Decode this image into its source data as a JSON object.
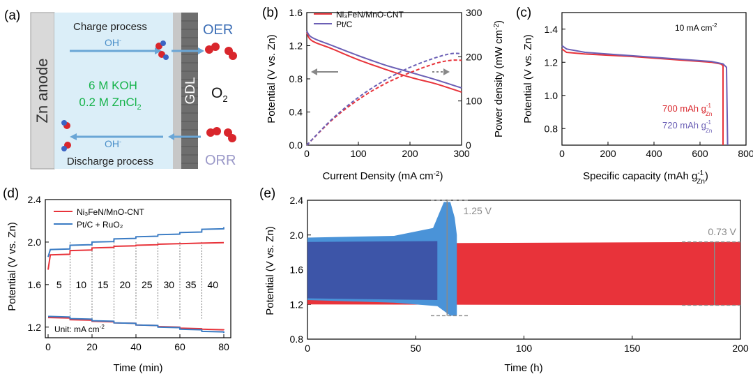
{
  "colors": {
    "red": "#e8333a",
    "purple": "#6b5fb5",
    "blue": "#3b7cc4",
    "darkblue": "#3d55a8",
    "green": "#16b34a",
    "oer_blue": "#3d6fb6",
    "orr_gray": "#9a98c8",
    "gray": "#8a8a8a"
  },
  "panel_a": {
    "label": "(a)",
    "zn_anode": "Zn anode",
    "charge": "Charge process",
    "discharge": "Discharge process",
    "oh_top": "OH",
    "oh_bottom": "OH",
    "oh_sup": "-",
    "koh": "6 M KOH",
    "zncl_main": "0.2 M ZnCl",
    "zncl_sub": "2",
    "gdl": "GDL",
    "oer": "OER",
    "orr": "ORR",
    "o2_main": "O",
    "o2_sub": "2"
  },
  "chart_data": [
    {
      "panel": "(b)",
      "type": "line",
      "xlabel_main": "Current Density (mA cm",
      "xlabel_sup": "-2",
      "xlabel_end": ")",
      "ylabel": "Potential (V vs. Zn)",
      "y2label_main": "Power density (mW cm",
      "y2label_sup": "-2",
      "y2label_end": ")",
      "xlim": [
        0,
        300
      ],
      "ylim": [
        0.0,
        1.6
      ],
      "y2lim": [
        0,
        300
      ],
      "xticks": [
        "0",
        "100",
        "200",
        "300"
      ],
      "yticks": [
        "0.0",
        "0.4",
        "0.8",
        "1.2",
        "1.6"
      ],
      "y2ticks": [
        "0",
        "100",
        "200",
        "300"
      ],
      "series": [
        {
          "name": "Ni3FeN/MnO-CNT",
          "axis": "left",
          "x": [
            0,
            10,
            50,
            100,
            150,
            200,
            250,
            300
          ],
          "y": [
            1.36,
            1.26,
            1.16,
            1.03,
            0.92,
            0.82,
            0.74,
            0.64
          ]
        },
        {
          "name": "Pt/C",
          "axis": "left",
          "x": [
            0,
            10,
            50,
            100,
            150,
            200,
            250,
            300
          ],
          "y": [
            1.38,
            1.3,
            1.2,
            1.08,
            0.97,
            0.88,
            0.79,
            0.69
          ]
        },
        {
          "name": "Ni3FeN/MnO-CNT power",
          "axis": "right",
          "x": [
            0,
            50,
            100,
            150,
            200,
            250,
            280,
            300
          ],
          "y": [
            0,
            58,
            103,
            138,
            164,
            185,
            192,
            192
          ]
        },
        {
          "name": "Pt/C power",
          "axis": "right",
          "x": [
            0,
            50,
            100,
            150,
            200,
            250,
            280,
            300
          ],
          "y": [
            0,
            60,
            108,
            146,
            176,
            198,
            207,
            207
          ]
        }
      ],
      "legend": [
        "Ni₃FeN/MnO-CNT",
        "Pt/C"
      ]
    },
    {
      "panel": "(c)",
      "type": "line",
      "xlabel_main": "Specific capacity (mAh g",
      "xlabel_sup": "-1",
      "xlabel_sub": "Zn",
      "xlabel_end": ")",
      "ylabel": "Potential (V vs. Zn)",
      "xlim": [
        0,
        800
      ],
      "ylim": [
        0.7,
        1.5
      ],
      "xticks": [
        "0",
        "200",
        "400",
        "600",
        "800"
      ],
      "yticks": [
        "0.8",
        "1.0",
        "1.2",
        "1.4"
      ],
      "annotation_main": "10 mA cm",
      "annotation_sup": "-2",
      "labels": [
        {
          "main": "700 mAh g",
          "sup": "-1",
          "sub": "Zn"
        },
        {
          "main": "720 mAh g",
          "sup": "-1",
          "sub": "Zn"
        }
      ],
      "series": [
        {
          "name": "Ni3FeN/MnO-CNT",
          "x": [
            0,
            20,
            100,
            300,
            500,
            650,
            690,
            700,
            700
          ],
          "y": [
            1.28,
            1.26,
            1.25,
            1.235,
            1.215,
            1.2,
            1.19,
            1.18,
            0.7
          ]
        },
        {
          "name": "Pt/C",
          "x": [
            0,
            20,
            100,
            300,
            500,
            650,
            700,
            715,
            720
          ],
          "y": [
            1.3,
            1.28,
            1.26,
            1.24,
            1.22,
            1.205,
            1.19,
            1.17,
            0.7
          ]
        }
      ]
    },
    {
      "panel": "(d)",
      "type": "line",
      "xlabel": "Time (min)",
      "ylabel": "Potential (V vs. Zn)",
      "xlim": [
        0,
        80
      ],
      "ylim": [
        1.1,
        2.4
      ],
      "xticks": [
        "0",
        "20",
        "40",
        "60",
        "80"
      ],
      "yticks": [
        "1.2",
        "1.6",
        "2.0",
        "2.4"
      ],
      "step_labels": [
        "5",
        "10",
        "15",
        "20",
        "25",
        "30",
        "35",
        "40"
      ],
      "unit_main": "Unit: mA cm",
      "unit_sup": "-2",
      "legend": [
        "Ni₃FeN/MnO-CNT",
        "Pt/C + RuO₂"
      ],
      "series": [
        {
          "name": "Ni3FeN/MnO-CNT charge",
          "x": [
            0,
            10,
            20,
            30,
            40,
            50,
            60,
            70,
            80
          ],
          "y": [
            1.88,
            1.92,
            1.945,
            1.96,
            1.97,
            1.98,
            1.985,
            1.99,
            1.995
          ]
        },
        {
          "name": "Pt/C + RuO2 charge",
          "x": [
            0,
            10,
            20,
            30,
            40,
            50,
            60,
            70,
            80
          ],
          "y": [
            1.93,
            1.97,
            2.0,
            2.03,
            2.05,
            2.07,
            2.09,
            2.12,
            2.14
          ]
        },
        {
          "name": "Ni3FeN/MnO-CNT discharge",
          "x": [
            0,
            10,
            20,
            30,
            40,
            50,
            60,
            70,
            80
          ],
          "y": [
            1.29,
            1.27,
            1.255,
            1.24,
            1.22,
            1.205,
            1.19,
            1.18,
            1.17
          ]
        },
        {
          "name": "Pt/C + RuO2 discharge",
          "x": [
            0,
            10,
            20,
            30,
            40,
            50,
            60,
            70,
            80
          ],
          "y": [
            1.3,
            1.28,
            1.26,
            1.24,
            1.22,
            1.2,
            1.18,
            1.16,
            1.145
          ]
        }
      ]
    },
    {
      "panel": "(e)",
      "type": "area",
      "xlabel": "Time (h)",
      "ylabel": "Potential (V vs. Zn)",
      "xlim": [
        0,
        200
      ],
      "ylim": [
        0.8,
        2.4
      ],
      "xticks": [
        "0",
        "50",
        "100",
        "150",
        "200"
      ],
      "yticks": [
        "0.8",
        "1.2",
        "1.6",
        "2.0",
        "2.4"
      ],
      "gap_labels": [
        "1.25 V",
        "0.73 V"
      ],
      "series": [
        {
          "name": "Pt/C + RuO2",
          "x_end": 69,
          "upper": [
            1.96,
            1.98,
            2.0,
            2.4
          ],
          "lower": [
            1.24,
            1.22,
            1.2,
            1.07
          ]
        },
        {
          "name": "Ni3FeN/MnO-CNT",
          "x_end": 200,
          "upper": [
            1.9,
            1.92
          ],
          "lower": [
            1.2,
            1.19
          ]
        }
      ]
    }
  ]
}
